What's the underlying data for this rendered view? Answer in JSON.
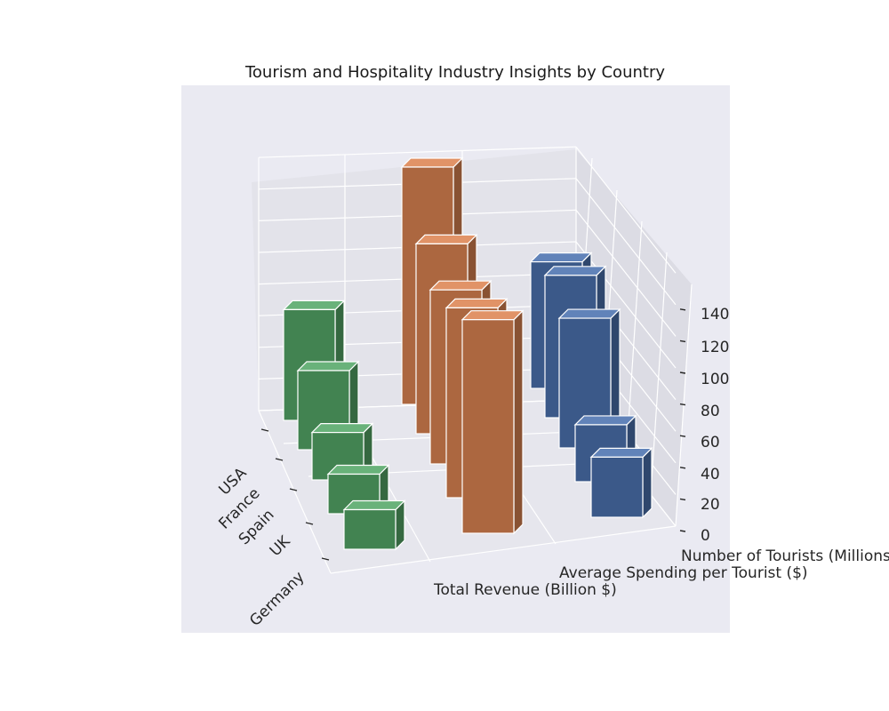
{
  "chart_data": {
    "type": "bar",
    "title": "Tourism and Hospitality Industry Insights by Country",
    "categories": [
      "USA",
      "France",
      "Spain",
      "UK",
      "Germany"
    ],
    "series": [
      {
        "name": "Number of Tourists (Millions)",
        "values": [
          80,
          90,
          82,
          36,
          38
        ],
        "color": "#4c72b0"
      },
      {
        "name": "Average Spending per Tourist ($)",
        "values": [
          150,
          120,
          110,
          120,
          135
        ],
        "color": "#dd8452"
      },
      {
        "name": "Total Revenue (Billion $)",
        "values": [
          70,
          50,
          30,
          25,
          25
        ],
        "color": "#55a868"
      }
    ],
    "zlabel_ticks": [
      "0",
      "20",
      "40",
      "60",
      "80",
      "100",
      "120",
      "140"
    ],
    "zlim": [
      0,
      160
    ],
    "grid": true,
    "background": "#eaeaf2"
  }
}
